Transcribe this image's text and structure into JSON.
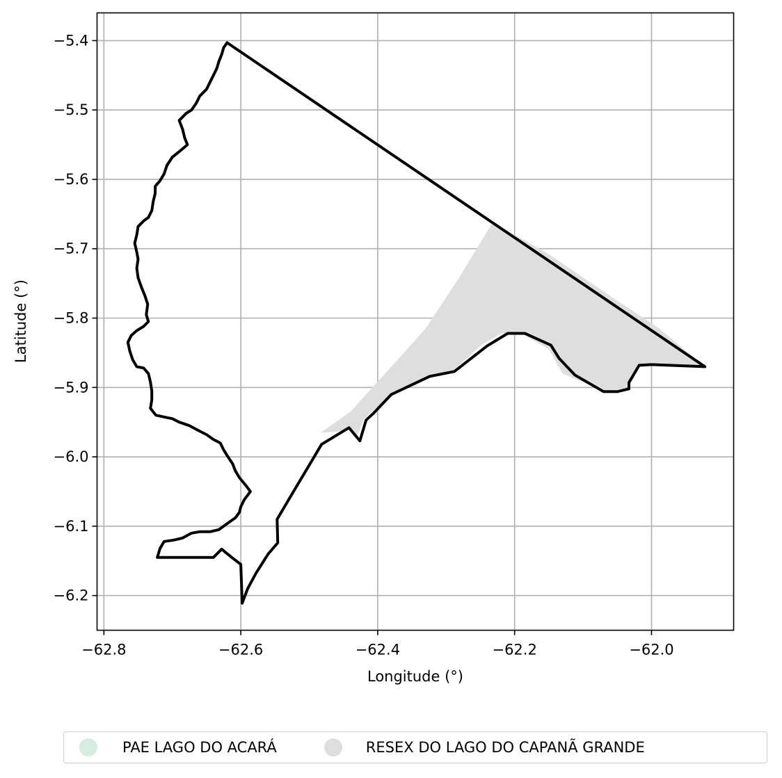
{
  "chart_data": {
    "type": "map",
    "xlabel": "Longitude (°)",
    "ylabel": "Latitude (°)",
    "xlim": [
      -62.81,
      -61.88
    ],
    "ylim": [
      -6.25,
      -5.36
    ],
    "xticks": [
      -62.8,
      -62.6,
      -62.4,
      -62.2,
      -62.0
    ],
    "xtick_labels": [
      "−62.8",
      "−62.6",
      "−62.4",
      "−62.2",
      "−62.0"
    ],
    "yticks": [
      -5.4,
      -5.5,
      -5.6,
      -5.7,
      -5.8,
      -5.9,
      -6.0,
      -6.1,
      -6.2
    ],
    "ytick_labels": [
      "−5.4",
      "−5.5",
      "−5.6",
      "−5.7",
      "−5.8",
      "−5.9",
      "−6.0",
      "−6.1",
      "−6.2"
    ],
    "grid": true,
    "legend_position": "bottom",
    "areas": [
      {
        "name": "PAE LAGO DO ACARÁ",
        "color": "#d4ede0",
        "coords": []
      },
      {
        "name": "RESEX DO LAGO DO CAPANÃ GRANDE",
        "color": "#dedede",
        "coords": [
          [
            -62.483,
            -5.965
          ],
          [
            -62.44,
            -5.935
          ],
          [
            -62.38,
            -5.87
          ],
          [
            -62.33,
            -5.815
          ],
          [
            -62.28,
            -5.74
          ],
          [
            -62.232,
            -5.662
          ],
          [
            -62.15,
            -5.708
          ],
          [
            -62.05,
            -5.775
          ],
          [
            -61.99,
            -5.814
          ],
          [
            -61.922,
            -5.87
          ],
          [
            -62.018,
            -5.868
          ],
          [
            -62.035,
            -5.897
          ],
          [
            -62.04,
            -5.903
          ],
          [
            -62.07,
            -5.905
          ],
          [
            -62.13,
            -5.88
          ],
          [
            -62.15,
            -5.845
          ],
          [
            -62.19,
            -5.822
          ],
          [
            -62.22,
            -5.822
          ],
          [
            -62.25,
            -5.84
          ],
          [
            -62.29,
            -5.876
          ],
          [
            -62.33,
            -5.885
          ],
          [
            -62.38,
            -5.91
          ],
          [
            -62.42,
            -5.945
          ],
          [
            -62.432,
            -5.975
          ],
          [
            -62.44,
            -5.962
          ],
          [
            -62.477,
            -5.965
          ]
        ]
      }
    ],
    "boundary_color": "#000000",
    "boundary": [
      [
        -62.62,
        -5.403
      ],
      [
        -62.625,
        -5.41
      ],
      [
        -62.628,
        -5.42
      ],
      [
        -62.632,
        -5.43
      ],
      [
        -62.635,
        -5.44
      ],
      [
        -62.64,
        -5.45
      ],
      [
        -62.645,
        -5.46
      ],
      [
        -62.65,
        -5.47
      ],
      [
        -62.66,
        -5.48
      ],
      [
        -62.665,
        -5.49
      ],
      [
        -62.672,
        -5.5
      ],
      [
        -62.68,
        -5.505
      ],
      [
        -62.69,
        -5.515
      ],
      [
        -62.685,
        -5.528
      ],
      [
        -62.682,
        -5.54
      ],
      [
        -62.678,
        -5.55
      ],
      [
        -62.69,
        -5.56
      ],
      [
        -62.7,
        -5.568
      ],
      [
        -62.708,
        -5.58
      ],
      [
        -62.712,
        -5.592
      ],
      [
        -62.718,
        -5.602
      ],
      [
        -62.725,
        -5.61
      ],
      [
        -62.725,
        -5.62
      ],
      [
        -62.728,
        -5.632
      ],
      [
        -62.73,
        -5.645
      ],
      [
        -62.735,
        -5.655
      ],
      [
        -62.742,
        -5.66
      ],
      [
        -62.75,
        -5.668
      ],
      [
        -62.752,
        -5.68
      ],
      [
        -62.755,
        -5.692
      ],
      [
        -62.752,
        -5.705
      ],
      [
        -62.75,
        -5.715
      ],
      [
        -62.752,
        -5.728
      ],
      [
        -62.75,
        -5.742
      ],
      [
        -62.745,
        -5.756
      ],
      [
        -62.74,
        -5.768
      ],
      [
        -62.736,
        -5.78
      ],
      [
        -62.738,
        -5.795
      ],
      [
        -62.735,
        -5.805
      ],
      [
        -62.742,
        -5.812
      ],
      [
        -62.752,
        -5.818
      ],
      [
        -62.76,
        -5.825
      ],
      [
        -62.765,
        -5.835
      ],
      [
        -62.762,
        -5.848
      ],
      [
        -62.758,
        -5.86
      ],
      [
        -62.752,
        -5.87
      ],
      [
        -62.742,
        -5.872
      ],
      [
        -62.735,
        -5.88
      ],
      [
        -62.732,
        -5.892
      ],
      [
        -62.73,
        -5.905
      ],
      [
        -62.73,
        -5.918
      ],
      [
        -62.732,
        -5.93
      ],
      [
        -62.724,
        -5.94
      ],
      [
        -62.71,
        -5.943
      ],
      [
        -62.7,
        -5.945
      ],
      [
        -62.69,
        -5.95
      ],
      [
        -62.675,
        -5.955
      ],
      [
        -62.662,
        -5.962
      ],
      [
        -62.65,
        -5.968
      ],
      [
        -62.64,
        -5.975
      ],
      [
        -62.63,
        -5.98
      ],
      [
        -62.625,
        -5.99
      ],
      [
        -62.62,
        -5.998
      ],
      [
        -62.612,
        -6.01
      ],
      [
        -62.608,
        -6.02
      ],
      [
        -62.602,
        -6.03
      ],
      [
        -62.592,
        -6.042
      ],
      [
        -62.586,
        -6.05
      ],
      [
        -62.595,
        -6.062
      ],
      [
        -62.6,
        -6.072
      ],
      [
        -62.602,
        -6.08
      ],
      [
        -62.608,
        -6.088
      ],
      [
        -62.618,
        -6.095
      ],
      [
        -62.625,
        -6.1
      ],
      [
        -62.632,
        -6.105
      ],
      [
        -62.645,
        -6.108
      ],
      [
        -62.66,
        -6.108
      ],
      [
        -62.672,
        -6.11
      ],
      [
        -62.685,
        -6.117
      ],
      [
        -62.698,
        -6.12
      ],
      [
        -62.712,
        -6.122
      ],
      [
        -62.718,
        -6.132
      ],
      [
        -62.722,
        -6.145
      ],
      [
        -62.64,
        -6.145
      ],
      [
        -62.628,
        -6.133
      ],
      [
        -62.612,
        -6.146
      ],
      [
        -62.6,
        -6.155
      ],
      [
        -62.598,
        -6.211
      ],
      [
        -62.59,
        -6.19
      ],
      [
        -62.578,
        -6.168
      ],
      [
        -62.56,
        -6.14
      ],
      [
        -62.546,
        -6.124
      ],
      [
        -62.547,
        -6.09
      ],
      [
        -62.52,
        -6.045
      ],
      [
        -62.5,
        -6.012
      ],
      [
        -62.482,
        -5.982
      ],
      [
        -62.442,
        -5.958
      ],
      [
        -62.426,
        -5.977
      ],
      [
        -62.417,
        -5.947
      ],
      [
        -62.407,
        -5.938
      ],
      [
        -62.38,
        -5.91
      ],
      [
        -62.324,
        -5.884
      ],
      [
        -62.288,
        -5.877
      ],
      [
        -62.24,
        -5.84
      ],
      [
        -62.21,
        -5.822
      ],
      [
        -62.185,
        -5.822
      ],
      [
        -62.147,
        -5.839
      ],
      [
        -62.135,
        -5.858
      ],
      [
        -62.112,
        -5.882
      ],
      [
        -62.07,
        -5.906
      ],
      [
        -62.05,
        -5.906
      ],
      [
        -62.033,
        -5.902
      ],
      [
        -62.033,
        -5.893
      ],
      [
        -62.018,
        -5.868
      ],
      [
        -62.0,
        -5.867
      ],
      [
        -61.922,
        -5.87
      ],
      [
        -62.62,
        -5.403
      ]
    ]
  }
}
